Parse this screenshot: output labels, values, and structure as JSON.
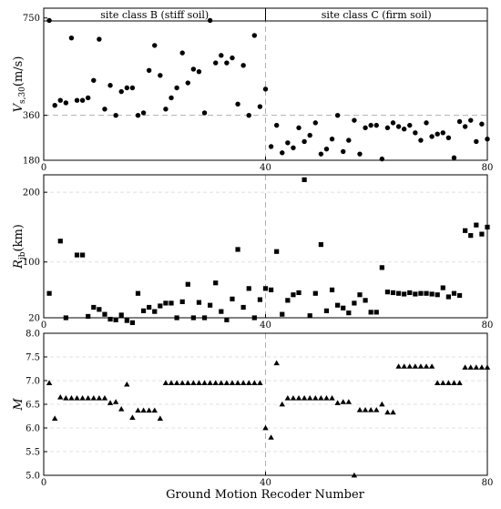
{
  "figure": {
    "xlabel": "Ground Motion Recoder Number"
  },
  "chart_data": [
    {
      "type": "scatter",
      "ylabel_main": "V",
      "ylabel_sub": "s,30",
      "ylabel_unit": "(m/s)",
      "xlim": [
        0,
        80
      ],
      "ylim": [
        180,
        760
      ],
      "yticks": [
        "180",
        "360",
        "750"
      ],
      "ytick_values": [
        180,
        360,
        750
      ],
      "reference_line": 360,
      "divider_x": 40,
      "regions": [
        {
          "label": "site class B (stiff soil)"
        },
        {
          "label": "site class C (firm soil)"
        }
      ],
      "marker": "circle",
      "x": [
        1,
        2,
        3,
        4,
        5,
        6,
        7,
        8,
        9,
        10,
        11,
        12,
        13,
        14,
        15,
        16,
        17,
        18,
        19,
        20,
        21,
        22,
        23,
        24,
        25,
        26,
        27,
        28,
        29,
        30,
        31,
        32,
        33,
        34,
        35,
        36,
        37,
        38,
        39,
        40,
        41,
        42,
        43,
        44,
        45,
        46,
        47,
        48,
        49,
        50,
        51,
        52,
        53,
        54,
        55,
        56,
        57,
        58,
        59,
        60,
        61,
        62,
        63,
        64,
        65,
        66,
        67,
        68,
        69,
        70,
        71,
        72,
        73,
        74,
        75,
        76,
        77,
        78,
        79,
        80
      ],
      "y": [
        740,
        400,
        420,
        410,
        670,
        420,
        420,
        430,
        500,
        665,
        385,
        480,
        360,
        455,
        470,
        470,
        360,
        370,
        540,
        640,
        520,
        385,
        430,
        470,
        610,
        490,
        545,
        535,
        370,
        740,
        570,
        600,
        570,
        590,
        405,
        560,
        360,
        680,
        395,
        465,
        235,
        320,
        210,
        250,
        230,
        310,
        255,
        280,
        330,
        205,
        225,
        265,
        360,
        215,
        260,
        340,
        205,
        310,
        320,
        320,
        185,
        310,
        330,
        315,
        305,
        320,
        290,
        260,
        330,
        275,
        285,
        290,
        270,
        190,
        335,
        315,
        340,
        255,
        325,
        265
      ]
    },
    {
      "type": "scatter",
      "ylabel_main": "R",
      "ylabel_sub": "jb",
      "ylabel_unit": "(km)",
      "xlim": [
        0,
        80
      ],
      "ylim": [
        20,
        225
      ],
      "yticks": [
        "20",
        "100",
        "200"
      ],
      "ytick_values": [
        20,
        100,
        200
      ],
      "divider_x": 40,
      "marker": "square",
      "x": [
        1,
        3,
        4,
        6,
        7,
        8,
        9,
        10,
        11,
        12,
        13,
        14,
        15,
        16,
        17,
        18,
        19,
        20,
        21,
        22,
        23,
        24,
        25,
        26,
        27,
        28,
        29,
        30,
        31,
        32,
        33,
        34,
        35,
        36,
        37,
        38,
        39,
        40,
        41,
        42,
        43,
        44,
        45,
        46,
        47,
        48,
        49,
        50,
        51,
        52,
        53,
        54,
        55,
        56,
        57,
        58,
        59,
        60,
        61,
        62,
        63,
        64,
        65,
        66,
        67,
        68,
        69,
        70,
        71,
        72,
        73,
        74,
        75,
        76,
        77,
        78,
        79,
        80
      ],
      "y": [
        55,
        130,
        20,
        110,
        110,
        22,
        35,
        32,
        25,
        18,
        17,
        24,
        16,
        13,
        55,
        30,
        35,
        29,
        37,
        41,
        41,
        20,
        43,
        68,
        20,
        42,
        20,
        38,
        70,
        29,
        17,
        47,
        118,
        35,
        62,
        20,
        46,
        62,
        60,
        115,
        25,
        45,
        53,
        56,
        218,
        23,
        55,
        125,
        30,
        60,
        38,
        34,
        27,
        41,
        53,
        45,
        28,
        28,
        92,
        57,
        56,
        55,
        54,
        56,
        54,
        55,
        55,
        54,
        53,
        63,
        50,
        55,
        52,
        145,
        138,
        153,
        140,
        150
      ]
    },
    {
      "type": "scatter",
      "ylabel_main": "M",
      "xlim": [
        0,
        80
      ],
      "ylim": [
        5.0,
        8.0
      ],
      "yticks": [
        "5.0",
        "5.5",
        "6.0",
        "6.5",
        "7.0",
        "7.5",
        "8.0"
      ],
      "ytick_values": [
        5.0,
        5.5,
        6.0,
        6.5,
        7.0,
        7.5,
        8.0
      ],
      "divider_x": 40,
      "marker": "triangle",
      "x": [
        1,
        2,
        3,
        4,
        5,
        6,
        7,
        8,
        9,
        10,
        11,
        12,
        13,
        14,
        15,
        16,
        17,
        18,
        19,
        20,
        21,
        22,
        23,
        24,
        25,
        26,
        27,
        28,
        29,
        30,
        31,
        32,
        33,
        34,
        35,
        36,
        37,
        38,
        39,
        40,
        41,
        42,
        43,
        44,
        45,
        46,
        47,
        48,
        49,
        50,
        51,
        52,
        53,
        54,
        55,
        56,
        57,
        58,
        59,
        60,
        61,
        62,
        63,
        64,
        65,
        66,
        67,
        68,
        69,
        70,
        71,
        72,
        73,
        74,
        75,
        76,
        77,
        78,
        79,
        80
      ],
      "y": [
        6.95,
        6.2,
        6.65,
        6.63,
        6.63,
        6.63,
        6.63,
        6.63,
        6.63,
        6.63,
        6.63,
        6.53,
        6.55,
        6.4,
        6.92,
        6.22,
        6.37,
        6.37,
        6.37,
        6.37,
        6.2,
        6.95,
        6.95,
        6.95,
        6.95,
        6.95,
        6.95,
        6.95,
        6.95,
        6.95,
        6.95,
        6.95,
        6.95,
        6.95,
        6.95,
        6.95,
        6.95,
        6.95,
        6.95,
        6.0,
        5.8,
        7.37,
        6.5,
        6.63,
        6.63,
        6.63,
        6.63,
        6.63,
        6.63,
        6.63,
        6.63,
        6.63,
        6.53,
        6.55,
        6.55,
        5.0,
        6.38,
        6.38,
        6.38,
        6.38,
        6.5,
        6.33,
        6.33,
        7.3,
        7.3,
        7.3,
        7.3,
        7.3,
        7.3,
        7.3,
        6.95,
        6.95,
        6.95,
        6.95,
        6.95,
        7.28,
        7.28,
        7.28,
        7.28,
        7.28
      ]
    }
  ]
}
